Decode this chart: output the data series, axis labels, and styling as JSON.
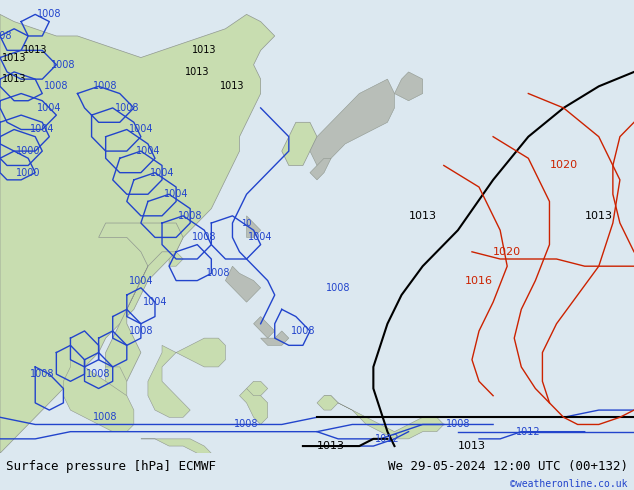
{
  "title_left": "Surface pressure [hPa] ECMWF",
  "title_right": "We 29-05-2024 12:00 UTC (00+132)",
  "copyright": "©weatheronline.co.uk",
  "bg_ocean": "#d0dce8",
  "bg_land_green": "#c8ddb0",
  "bg_land_gray": "#b8beb8",
  "border_color": "#909890",
  "blue": "#2244cc",
  "black": "#000000",
  "red": "#cc2200",
  "lw_isobar": 1.0,
  "lw_isobar_thick": 1.5,
  "font_size_title": 9,
  "font_size_label": 7,
  "font_size_copyright": 7,
  "bar_bg": "#dce8f0"
}
